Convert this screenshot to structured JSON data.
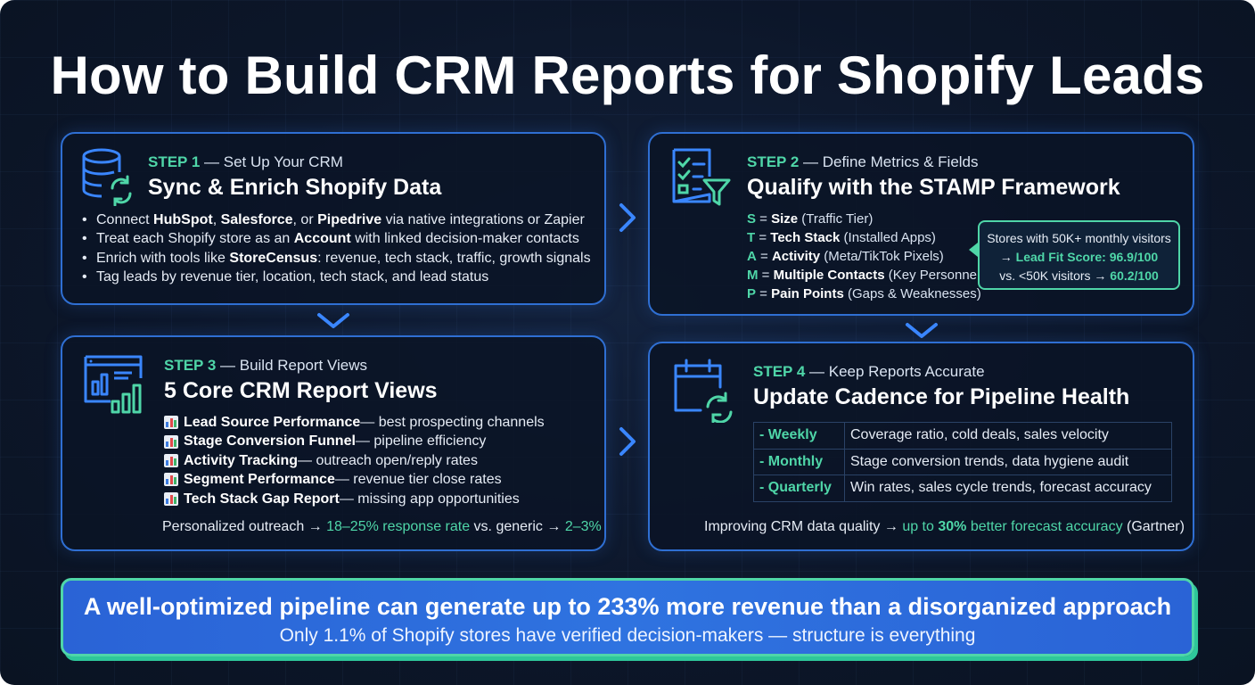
{
  "title": "How to Build CRM Reports for Shopify Leads",
  "step1": {
    "step_label": "STEP 1",
    "step_rest": " — Set Up Your CRM",
    "heading": "Sync & Enrich Shopify Data",
    "bullets": [
      {
        "t1": "Connect ",
        "b1": "HubSpot",
        "t2": ", ",
        "b2": "Salesforce",
        "t3": ", or ",
        "b3": "Pipedrive",
        "t4": " via native integrations or Zapier"
      },
      {
        "t1": "Treat each Shopify store as an ",
        "b1": "Account",
        "t2": " with linked decision-maker contacts"
      },
      {
        "t1": "Enrich with tools like ",
        "b1": "StoreCensus",
        "t2": ": revenue, tech stack, traffic, growth signals"
      },
      {
        "t1": "Tag leads by revenue tier, location, tech stack, and lead status"
      }
    ]
  },
  "step2": {
    "step_label": "STEP 2",
    "step_rest": " — Define Metrics & Fields",
    "heading": "Qualify with the STAMP Framework",
    "stamp": [
      {
        "letter": "S",
        "eq": " = ",
        "name": "Size",
        "detail": " (Traffic Tier)"
      },
      {
        "letter": "T",
        "eq": " = ",
        "name": "Tech Stack",
        "detail": " (Installed Apps)"
      },
      {
        "letter": "A",
        "eq": " = ",
        "name": "Activity",
        "detail": " (Meta/TikTok Pixels)"
      },
      {
        "letter": "M",
        "eq": " = ",
        "name": "Multiple Contacts",
        "detail": " (Key Personnel)"
      },
      {
        "letter": "P",
        "eq": " = ",
        "name": "Pain Points",
        "detail": " (Gaps & Weaknesses)"
      }
    ],
    "callout": {
      "line1": "Stores with 50K+ monthly visitors",
      "line2_prefix": "→ ",
      "line2_value": "Lead Fit Score: 96.9/100",
      "line3_prefix": "vs. <50K visitors → ",
      "line3_value": "60.2/100"
    }
  },
  "step3": {
    "step_label": "STEP 3",
    "step_rest": " — Build Report Views",
    "heading": "5 Core CRM Report Views",
    "views": [
      {
        "name": "Lead Source Performance",
        "desc": " — best prospecting channels"
      },
      {
        "name": "Stage Conversion Funnel",
        "desc": " — pipeline efficiency"
      },
      {
        "name": "Activity Tracking",
        "desc": " — outreach open/reply rates"
      },
      {
        "name": "Segment Performance",
        "desc": " — revenue tier close rates"
      },
      {
        "name": "Tech Stack Gap Report",
        "desc": " — missing app opportunities"
      }
    ],
    "note": {
      "prefix": "Personalized outreach → ",
      "hl1": "18–25%",
      "mid1": " response rate",
      "mid2": " vs. generic → ",
      "hl2": "2–3%"
    }
  },
  "step4": {
    "step_label": "STEP 4",
    "step_rest": " — Keep Reports Accurate",
    "heading": "Update Cadence for Pipeline Health",
    "cadence": [
      {
        "when": "- Weekly",
        "what": "Coverage ratio, cold deals, sales velocity"
      },
      {
        "when": "- Monthly",
        "what": "Stage conversion trends, data hygiene audit"
      },
      {
        "when": "- Quarterly",
        "what": "Win rates, sales cycle trends, forecast accuracy"
      }
    ],
    "note": {
      "prefix": "Improving CRM data quality → ",
      "hl1": "up to ",
      "hl_bold": "30%",
      "hl2": " better forecast accuracy",
      "suffix": " (Gartner)"
    }
  },
  "banner": {
    "headline": "A well-optimized pipeline can generate up to 233% more revenue than a disorganized approach",
    "subline": "Only 1.1% of Shopify stores have verified decision-makers — structure is everything"
  },
  "colors": {
    "accent_green": "#4fd6a8",
    "accent_blue": "#2f6fd3",
    "background": "#0c1629"
  },
  "icons": [
    "database-sync-icon",
    "checklist-filter-icon",
    "bar-chart-dashboard-icon",
    "calendar-refresh-icon",
    "chevron-right-icon",
    "chevron-down-icon"
  ]
}
